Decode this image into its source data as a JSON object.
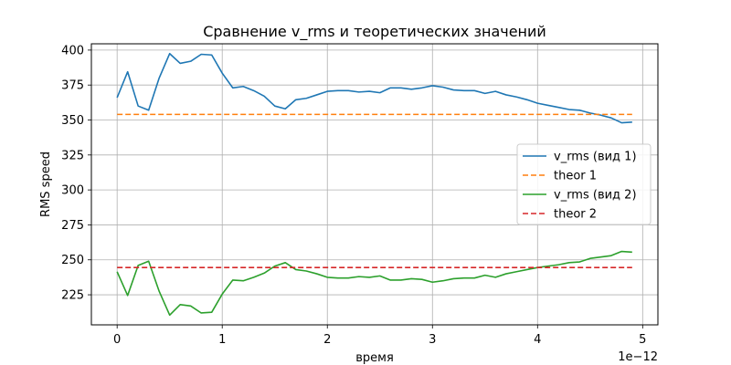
{
  "chart_data": {
    "type": "line",
    "title": "Сравнение v_rms и теоретических значений",
    "xlabel": "время",
    "ylabel": "RMS speed",
    "x_offset_label": "1e−12",
    "xlim": [
      -2.45e-13,
      5.145e-12
    ],
    "ylim": [
      203.5,
      404.5
    ],
    "x_ticks": [
      0,
      1e-12,
      2e-12,
      3e-12,
      4e-12,
      5e-12
    ],
    "x_tick_labels": [
      "0",
      "1",
      "2",
      "3",
      "4",
      "5"
    ],
    "y_ticks": [
      225,
      250,
      275,
      300,
      325,
      350,
      375,
      400
    ],
    "y_tick_labels": [
      "225",
      "250",
      "275",
      "300",
      "325",
      "350",
      "375",
      "400"
    ],
    "grid": true,
    "legend_position": "center-right",
    "x": [
      0,
      1e-13,
      2e-13,
      3e-13,
      4e-13,
      5e-13,
      6e-13,
      7e-13,
      8e-13,
      9e-13,
      1e-12,
      1.1e-12,
      1.2e-12,
      1.3e-12,
      1.4e-12,
      1.5e-12,
      1.6e-12,
      1.7e-12,
      1.8e-12,
      1.9e-12,
      2e-12,
      2.1e-12,
      2.2e-12,
      2.3e-12,
      2.4e-12,
      2.5e-12,
      2.6e-12,
      2.7e-12,
      2.8e-12,
      2.9e-12,
      3e-12,
      3.1e-12,
      3.2e-12,
      3.3e-12,
      3.4e-12,
      3.5e-12,
      3.6e-12,
      3.7e-12,
      3.8e-12,
      3.9e-12,
      4e-12,
      4.1e-12,
      4.2e-12,
      4.3e-12,
      4.4e-12,
      4.5e-12,
      4.6e-12,
      4.7e-12,
      4.8e-12,
      4.9e-12
    ],
    "series": [
      {
        "name": "v_rms (вид 1)",
        "style": "solid",
        "color": "#1f77b4",
        "values": [
          366,
          384.5,
          360,
          357,
          380,
          397.5,
          390.5,
          392,
          397,
          396.5,
          383.5,
          373,
          374,
          371,
          367,
          360,
          358,
          364.5,
          365.5,
          368,
          370.5,
          371,
          371,
          370,
          370.5,
          369.5,
          373,
          373,
          372,
          373,
          374.5,
          373.5,
          371.5,
          371,
          371,
          369,
          370.5,
          368,
          366.5,
          364.5,
          362,
          360.5,
          359,
          357.5,
          357,
          355,
          353.5,
          351.5,
          348,
          348.5
        ]
      },
      {
        "name": "theor 1",
        "style": "dashed",
        "color": "#ff7f0e",
        "values": [
          354,
          354,
          354,
          354,
          354,
          354,
          354,
          354,
          354,
          354,
          354,
          354,
          354,
          354,
          354,
          354,
          354,
          354,
          354,
          354,
          354,
          354,
          354,
          354,
          354,
          354,
          354,
          354,
          354,
          354,
          354,
          354,
          354,
          354,
          354,
          354,
          354,
          354,
          354,
          354,
          354,
          354,
          354,
          354,
          354,
          354,
          354,
          354,
          354,
          354
        ]
      },
      {
        "name": "v_rms (вид 2)",
        "style": "solid",
        "color": "#2ca02c",
        "values": [
          241.5,
          224.5,
          246,
          249,
          227.5,
          210.5,
          218,
          217,
          212,
          212.5,
          225.5,
          235.5,
          235,
          237.5,
          240.5,
          245.5,
          248,
          243,
          242,
          240,
          237.5,
          237,
          237,
          238,
          237.5,
          238.5,
          235.5,
          235.5,
          236.5,
          236,
          234,
          235,
          236.5,
          237,
          237,
          239,
          237.5,
          240,
          241.5,
          243,
          244.5,
          245.5,
          246.5,
          248,
          248.5,
          251,
          252,
          253,
          256,
          255.5
        ]
      },
      {
        "name": "theor 2",
        "style": "dashed",
        "color": "#d62728",
        "values": [
          244.5,
          244.5,
          244.5,
          244.5,
          244.5,
          244.5,
          244.5,
          244.5,
          244.5,
          244.5,
          244.5,
          244.5,
          244.5,
          244.5,
          244.5,
          244.5,
          244.5,
          244.5,
          244.5,
          244.5,
          244.5,
          244.5,
          244.5,
          244.5,
          244.5,
          244.5,
          244.5,
          244.5,
          244.5,
          244.5,
          244.5,
          244.5,
          244.5,
          244.5,
          244.5,
          244.5,
          244.5,
          244.5,
          244.5,
          244.5,
          244.5,
          244.5,
          244.5,
          244.5,
          244.5,
          244.5,
          244.5,
          244.5,
          244.5,
          244.5
        ]
      }
    ]
  }
}
